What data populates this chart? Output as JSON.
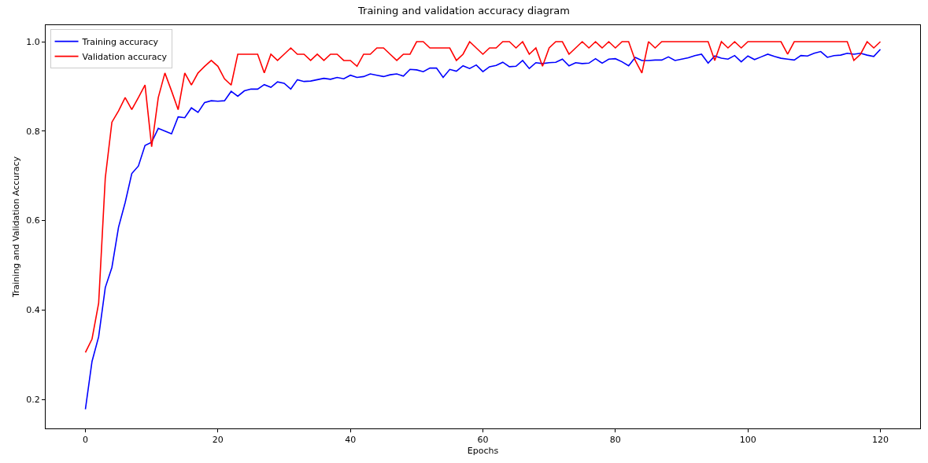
{
  "chart_data": {
    "type": "line",
    "title": "Training and validation accuracy diagram",
    "xlabel": "Epochs",
    "ylabel": "Training and Validation Accuracy",
    "x": [
      0,
      1,
      2,
      3,
      4,
      5,
      6,
      7,
      8,
      9,
      10,
      11,
      12,
      13,
      14,
      15,
      16,
      17,
      18,
      19,
      20,
      21,
      22,
      23,
      24,
      25,
      26,
      27,
      28,
      29,
      30,
      31,
      32,
      33,
      34,
      35,
      36,
      37,
      38,
      39,
      40,
      41,
      42,
      43,
      44,
      45,
      46,
      47,
      48,
      49,
      50,
      51,
      52,
      53,
      54,
      55,
      56,
      57,
      58,
      59,
      60,
      61,
      62,
      63,
      64,
      65,
      66,
      67,
      68,
      69,
      70,
      71,
      72,
      73,
      74,
      75,
      76,
      77,
      78,
      79,
      80,
      81,
      82,
      83,
      84,
      85,
      86,
      87,
      88,
      89,
      90,
      91,
      92,
      93,
      94,
      95,
      96,
      97,
      98,
      99,
      100,
      101,
      102,
      103,
      104,
      105,
      106,
      107,
      108,
      109,
      110,
      111,
      112,
      113,
      114,
      115,
      116,
      117,
      118,
      119,
      120
    ],
    "series": [
      {
        "name": "Training accuracy",
        "color": "#0000ff",
        "values": [
          0.178,
          0.285,
          0.34,
          0.45,
          0.495,
          0.585,
          0.64,
          0.705,
          0.722,
          0.768,
          0.775,
          0.806,
          0.8,
          0.794,
          0.832,
          0.83,
          0.852,
          0.842,
          0.864,
          0.868,
          0.867,
          0.868,
          0.889,
          0.878,
          0.89,
          0.894,
          0.894,
          0.904,
          0.898,
          0.91,
          0.907,
          0.894,
          0.915,
          0.911,
          0.912,
          0.915,
          0.918,
          0.916,
          0.92,
          0.917,
          0.925,
          0.92,
          0.922,
          0.928,
          0.925,
          0.922,
          0.926,
          0.928,
          0.923,
          0.938,
          0.937,
          0.933,
          0.941,
          0.941,
          0.92,
          0.938,
          0.934,
          0.946,
          0.94,
          0.948,
          0.933,
          0.944,
          0.947,
          0.954,
          0.944,
          0.945,
          0.958,
          0.94,
          0.953,
          0.951,
          0.953,
          0.954,
          0.961,
          0.946,
          0.953,
          0.951,
          0.952,
          0.962,
          0.952,
          0.961,
          0.962,
          0.955,
          0.946,
          0.965,
          0.958,
          0.958,
          0.959,
          0.959,
          0.966,
          0.958,
          0.961,
          0.964,
          0.969,
          0.972,
          0.952,
          0.968,
          0.963,
          0.961,
          0.969,
          0.955,
          0.968,
          0.96,
          0.966,
          0.972,
          0.967,
          0.963,
          0.961,
          0.959,
          0.969,
          0.968,
          0.974,
          0.978,
          0.965,
          0.969,
          0.97,
          0.974,
          0.972,
          0.974,
          0.97,
          0.967,
          0.983
        ]
      },
      {
        "name": "Validation accuracy",
        "color": "#ff0000",
        "values": [
          0.305,
          0.335,
          0.415,
          0.695,
          0.82,
          0.845,
          0.875,
          0.848,
          0.875,
          0.903,
          0.765,
          0.875,
          0.93,
          0.89,
          0.848,
          0.93,
          0.903,
          0.93,
          0.945,
          0.958,
          0.945,
          0.917,
          0.903,
          0.972,
          0.972,
          0.972,
          0.972,
          0.93,
          0.972,
          0.958,
          0.972,
          0.986,
          0.972,
          0.972,
          0.958,
          0.972,
          0.958,
          0.972,
          0.972,
          0.958,
          0.958,
          0.945,
          0.972,
          0.972,
          0.986,
          0.986,
          0.972,
          0.958,
          0.972,
          0.972,
          1.0,
          1.0,
          0.986,
          0.986,
          0.986,
          0.986,
          0.958,
          0.972,
          1.0,
          0.986,
          0.972,
          0.986,
          0.986,
          1.0,
          1.0,
          0.986,
          1.0,
          0.972,
          0.986,
          0.945,
          0.986,
          1.0,
          1.0,
          0.972,
          0.986,
          1.0,
          0.986,
          1.0,
          0.986,
          1.0,
          0.986,
          1.0,
          1.0,
          0.958,
          0.93,
          1.0,
          0.986,
          1.0,
          1.0,
          1.0,
          1.0,
          1.0,
          1.0,
          1.0,
          1.0,
          0.958,
          1.0,
          0.986,
          1.0,
          0.986,
          1.0,
          1.0,
          1.0,
          1.0,
          1.0,
          1.0,
          0.972,
          1.0,
          1.0,
          1.0,
          1.0,
          1.0,
          1.0,
          1.0,
          1.0,
          1.0,
          0.958,
          0.972,
          1.0,
          0.986,
          1.0
        ]
      }
    ],
    "xlim": [
      -6,
      126
    ],
    "xticks": [
      0,
      20,
      40,
      60,
      80,
      100,
      120
    ],
    "ylim": [
      0.135,
      1.037
    ],
    "yticks": [
      0.2,
      0.4,
      0.6,
      0.8,
      {
        "value": 1,
        "label": "1.0"
      }
    ],
    "legend": "top left",
    "marker": "none",
    "line_style": "solid"
  }
}
